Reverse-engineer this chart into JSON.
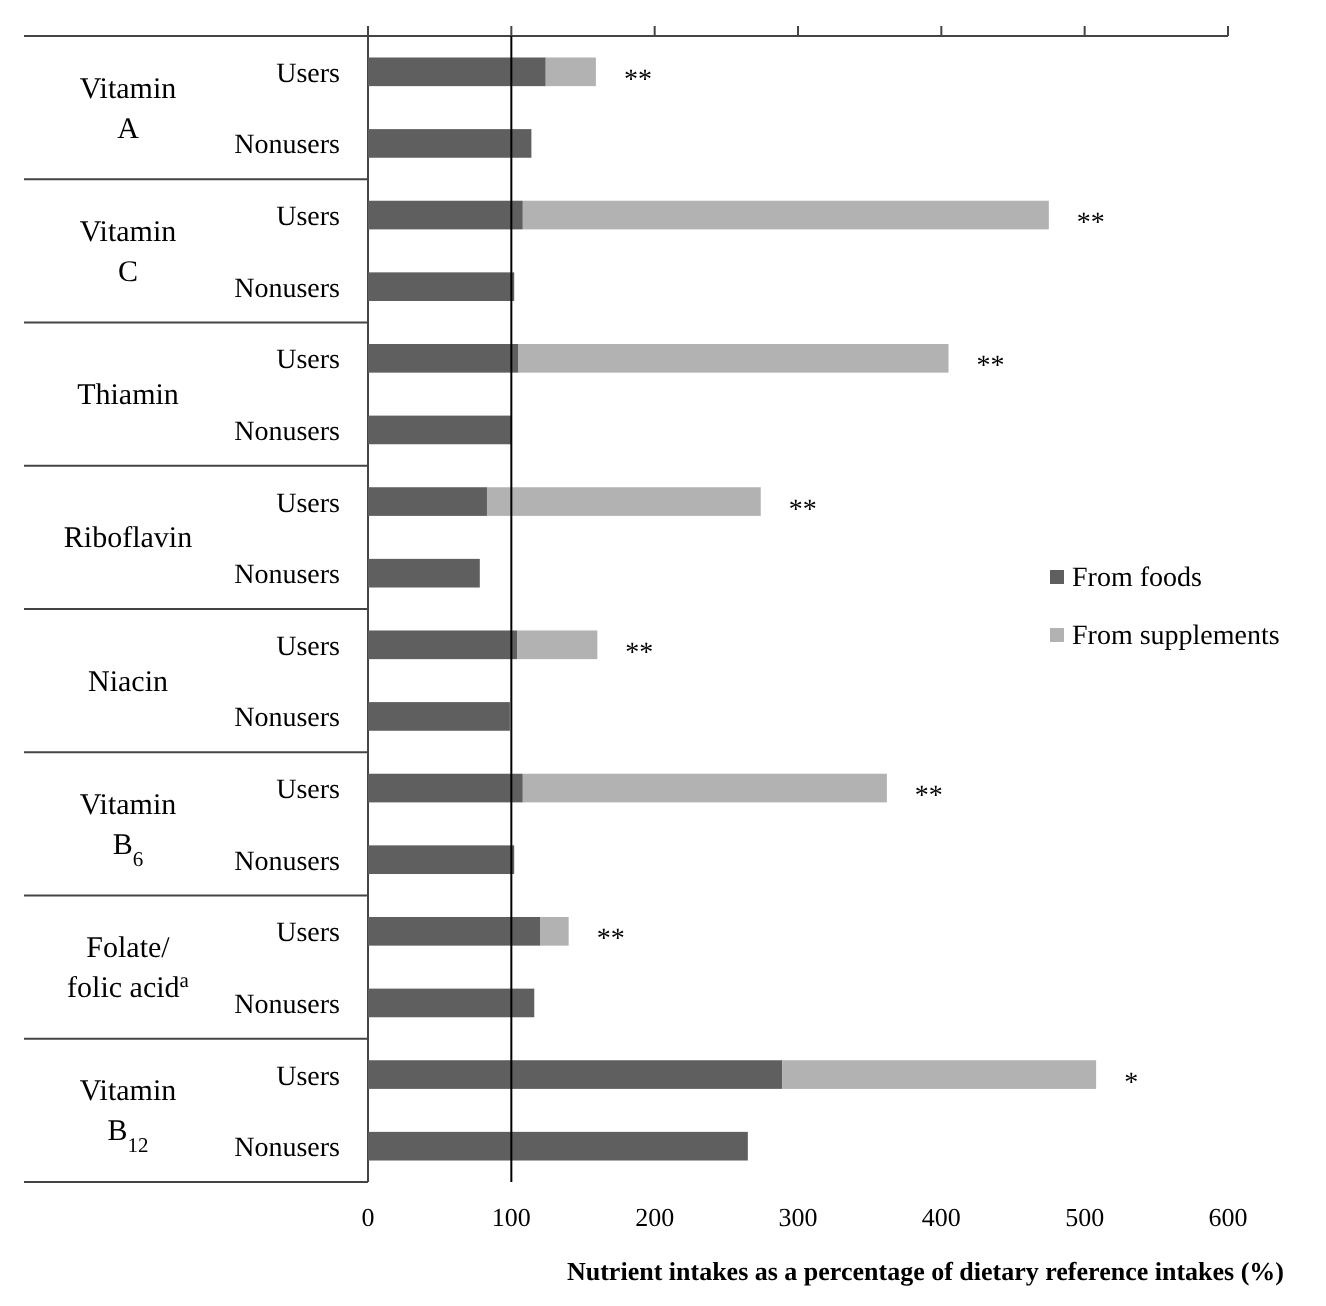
{
  "chart_data": {
    "type": "bar",
    "orientation": "horizontal",
    "stacked": true,
    "categories": [
      "Users",
      "Nonusers",
      "Users",
      "Nonusers",
      "Users",
      "Nonusers",
      "Users",
      "Nonusers",
      "Users",
      "Nonusers",
      "Users",
      "Nonusers",
      "Users",
      "Nonusers",
      "Users",
      "Nonusers"
    ],
    "series": [
      {
        "name": "From foods",
        "color": "#5f5f5f",
        "values": [
          124,
          114,
          108,
          102,
          105,
          100,
          83,
          78,
          104,
          99,
          108,
          102,
          120,
          116,
          289,
          265
        ]
      },
      {
        "name": "From supplements",
        "color": "#b2b2b2",
        "values": [
          35,
          null,
          367,
          null,
          300,
          null,
          191,
          null,
          56,
          null,
          254,
          null,
          20,
          null,
          219,
          null
        ]
      }
    ],
    "xlabel": "Nutrient intakes as a percentage of dietary reference intakes (%)",
    "xlim": [
      0,
      600
    ],
    "xticks": [
      0,
      100,
      200,
      300,
      400,
      500,
      600
    ],
    "ref_lines": [
      {
        "axis": "x",
        "value": 100,
        "color": "#000000"
      }
    ],
    "annotations": [
      "Vitamin\nA",
      "Vitamin\nC",
      "Thiamin",
      "Riboflavin",
      "Niacin",
      "Vitamin\nB$_{6}$",
      "Folate/\nfolic acid$^{a}$",
      "Vitamin\nB$_{12}$",
      "**",
      "**",
      "**",
      "**",
      "**",
      "**",
      "**",
      "*"
    ],
    "legend": "right",
    "grid": false
  }
}
